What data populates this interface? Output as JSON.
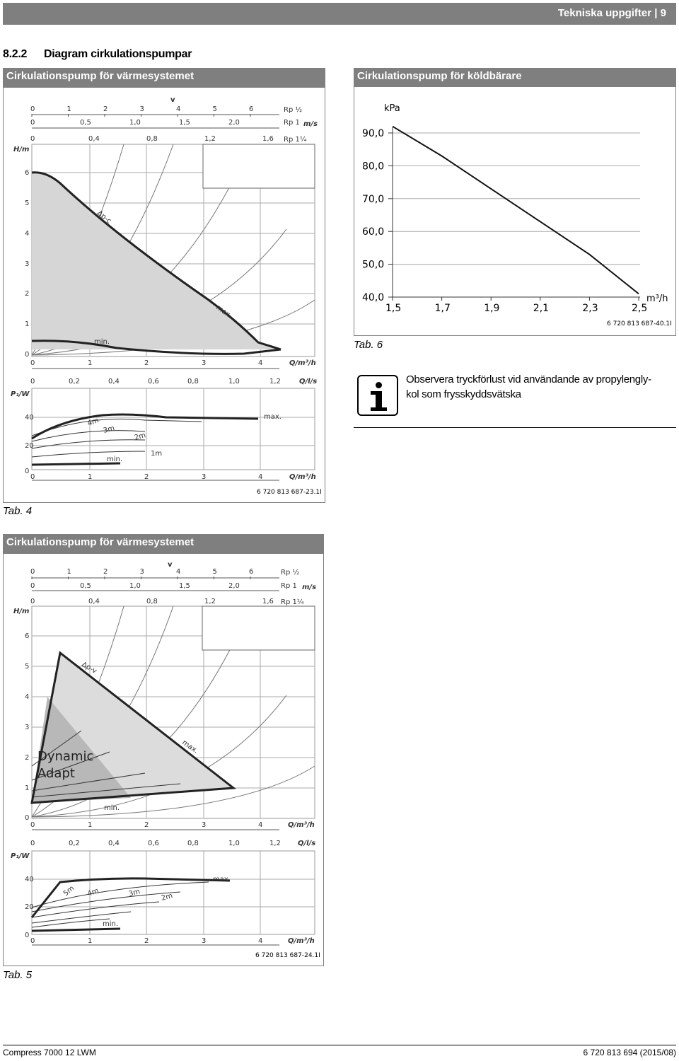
{
  "header": {
    "section": "Tekniska uppgifter",
    "page": "9"
  },
  "section": {
    "number": "8.2.2",
    "title": "Diagram cirkulationspumpar"
  },
  "tab4": {
    "title": "Cirkulationspump för värmesystemet",
    "code": "6 720 813 687-23.1I",
    "caption": "Tab. 4",
    "top_axis": {
      "v": "v",
      "rp_half": [
        "0",
        "1",
        "2",
        "3",
        "4",
        "5",
        "6"
      ],
      "rp_half_label": "Rp ½",
      "rp1": [
        "0",
        "0,5",
        "1,0",
        "1,5",
        "2,0"
      ],
      "rp1_label": "Rp 1",
      "ms": "m/s",
      "rp114": [
        "0",
        "0,4",
        "0,8",
        "1,2",
        "1,6"
      ],
      "rp114_label": "Rp 1¼"
    },
    "h_axis": {
      "label": "H/m",
      "ticks": [
        "6",
        "5",
        "4",
        "3",
        "2",
        "1",
        "0"
      ]
    },
    "q_axis": {
      "ticks": [
        "0",
        "1",
        "2",
        "3",
        "4"
      ],
      "label": "Q/m³/h"
    },
    "ql_axis": {
      "ticks": [
        "0",
        "0,2",
        "0,4",
        "0,6",
        "0,8",
        "1,0",
        "1,2"
      ],
      "label": "Q/l/s"
    },
    "p_axis": {
      "label": "P₁/W",
      "ticks": [
        "40",
        "20",
        "0"
      ]
    },
    "annot": {
      "dpc": "Δp-c",
      "max": "max.",
      "min": "min.",
      "m4": "4m",
      "m3": "3m",
      "m2": "2m",
      "m1": "1m",
      "pmax": "max.",
      "pmin": "min."
    }
  },
  "tab5": {
    "title": "Cirkulationspump för värmesystemet",
    "code": "6 720 813 687-24.1I",
    "caption": "Tab. 5",
    "annot": {
      "dpv": "Δp-v",
      "max": "max.",
      "min": "min.",
      "dyn1": "Dynamic",
      "dyn2": "Adapt",
      "m5": "5m",
      "m4": "4m",
      "m3": "3m",
      "m2": "2m",
      "pmax": "max.",
      "pmin": "min."
    }
  },
  "tab6": {
    "title": "Cirkulationspump för köldbärare",
    "caption": "Tab. 6",
    "code": "6 720 813 687-40.1I",
    "chart_data": {
      "type": "line",
      "ylabel": "kPa",
      "xlabel": "m³/h",
      "x_ticks": [
        "1,5",
        "1,7",
        "1,9",
        "2,1",
        "2,3",
        "2,5"
      ],
      "y_ticks": [
        "90,0",
        "80,0",
        "70,0",
        "60,0",
        "50,0",
        "40,0"
      ],
      "xlim": [
        1.5,
        2.5
      ],
      "ylim": [
        40,
        90
      ],
      "series": [
        {
          "x": [
            1.5,
            1.7,
            1.9,
            2.1,
            2.3,
            2.5
          ],
          "y": [
            92,
            83,
            73,
            63,
            53,
            41
          ]
        }
      ]
    }
  },
  "note": {
    "line1": "Observera tryckförlust vid användande av propylengly-",
    "line2": "kol som frysskyddsvätska"
  },
  "footer": {
    "left": "Compress 7000 12 LWM",
    "right": "6 720 813 694 (2015/08)"
  }
}
